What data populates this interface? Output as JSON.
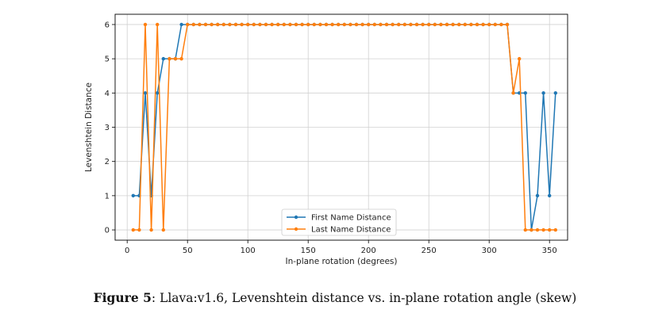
{
  "chart_data": {
    "type": "line",
    "xlabel": "In-plane rotation (degrees)",
    "ylabel": "Levenshtein Distance",
    "xlim": [
      -10,
      365
    ],
    "ylim": [
      -0.3,
      6.3
    ],
    "xticks": [
      0,
      50,
      100,
      150,
      200,
      250,
      300,
      350
    ],
    "yticks": [
      0,
      1,
      2,
      3,
      4,
      5,
      6
    ],
    "grid": true,
    "legend_position": "lower center",
    "series": [
      {
        "name": "First Name Distance",
        "color": "#1f77b4",
        "x": [
          5,
          10,
          15,
          20,
          25,
          30,
          35,
          40,
          45,
          50,
          55,
          60,
          65,
          70,
          75,
          80,
          85,
          90,
          95,
          100,
          105,
          110,
          115,
          120,
          125,
          130,
          135,
          140,
          145,
          150,
          155,
          160,
          165,
          170,
          175,
          180,
          185,
          190,
          195,
          200,
          205,
          210,
          215,
          220,
          225,
          230,
          235,
          240,
          245,
          250,
          255,
          260,
          265,
          270,
          275,
          280,
          285,
          290,
          295,
          300,
          305,
          310,
          315,
          320,
          325,
          330,
          335,
          340,
          345,
          350,
          355
        ],
        "y": [
          1,
          1,
          4,
          1,
          4,
          5,
          5,
          5,
          6,
          6,
          6,
          6,
          6,
          6,
          6,
          6,
          6,
          6,
          6,
          6,
          6,
          6,
          6,
          6,
          6,
          6,
          6,
          6,
          6,
          6,
          6,
          6,
          6,
          6,
          6,
          6,
          6,
          6,
          6,
          6,
          6,
          6,
          6,
          6,
          6,
          6,
          6,
          6,
          6,
          6,
          6,
          6,
          6,
          6,
          6,
          6,
          6,
          6,
          6,
          6,
          6,
          6,
          6,
          4,
          4,
          4,
          0,
          1,
          4,
          1,
          4
        ]
      },
      {
        "name": "Last Name Distance",
        "color": "#ff7f0e",
        "x": [
          5,
          10,
          15,
          20,
          25,
          30,
          35,
          40,
          45,
          50,
          55,
          60,
          65,
          70,
          75,
          80,
          85,
          90,
          95,
          100,
          105,
          110,
          115,
          120,
          125,
          130,
          135,
          140,
          145,
          150,
          155,
          160,
          165,
          170,
          175,
          180,
          185,
          190,
          195,
          200,
          205,
          210,
          215,
          220,
          225,
          230,
          235,
          240,
          245,
          250,
          255,
          260,
          265,
          270,
          275,
          280,
          285,
          290,
          295,
          300,
          305,
          310,
          315,
          320,
          325,
          330,
          335,
          340,
          345,
          350,
          355
        ],
        "y": [
          0,
          0,
          6,
          0,
          6,
          0,
          5,
          5,
          5,
          6,
          6,
          6,
          6,
          6,
          6,
          6,
          6,
          6,
          6,
          6,
          6,
          6,
          6,
          6,
          6,
          6,
          6,
          6,
          6,
          6,
          6,
          6,
          6,
          6,
          6,
          6,
          6,
          6,
          6,
          6,
          6,
          6,
          6,
          6,
          6,
          6,
          6,
          6,
          6,
          6,
          6,
          6,
          6,
          6,
          6,
          6,
          6,
          6,
          6,
          6,
          6,
          6,
          6,
          4,
          5,
          0,
          0,
          0,
          0,
          0,
          0
        ]
      }
    ]
  },
  "caption": {
    "label": "Figure 5",
    "text": ": Llava:v1.6, Levenshtein distance vs. in-plane rotation angle (skew)"
  }
}
